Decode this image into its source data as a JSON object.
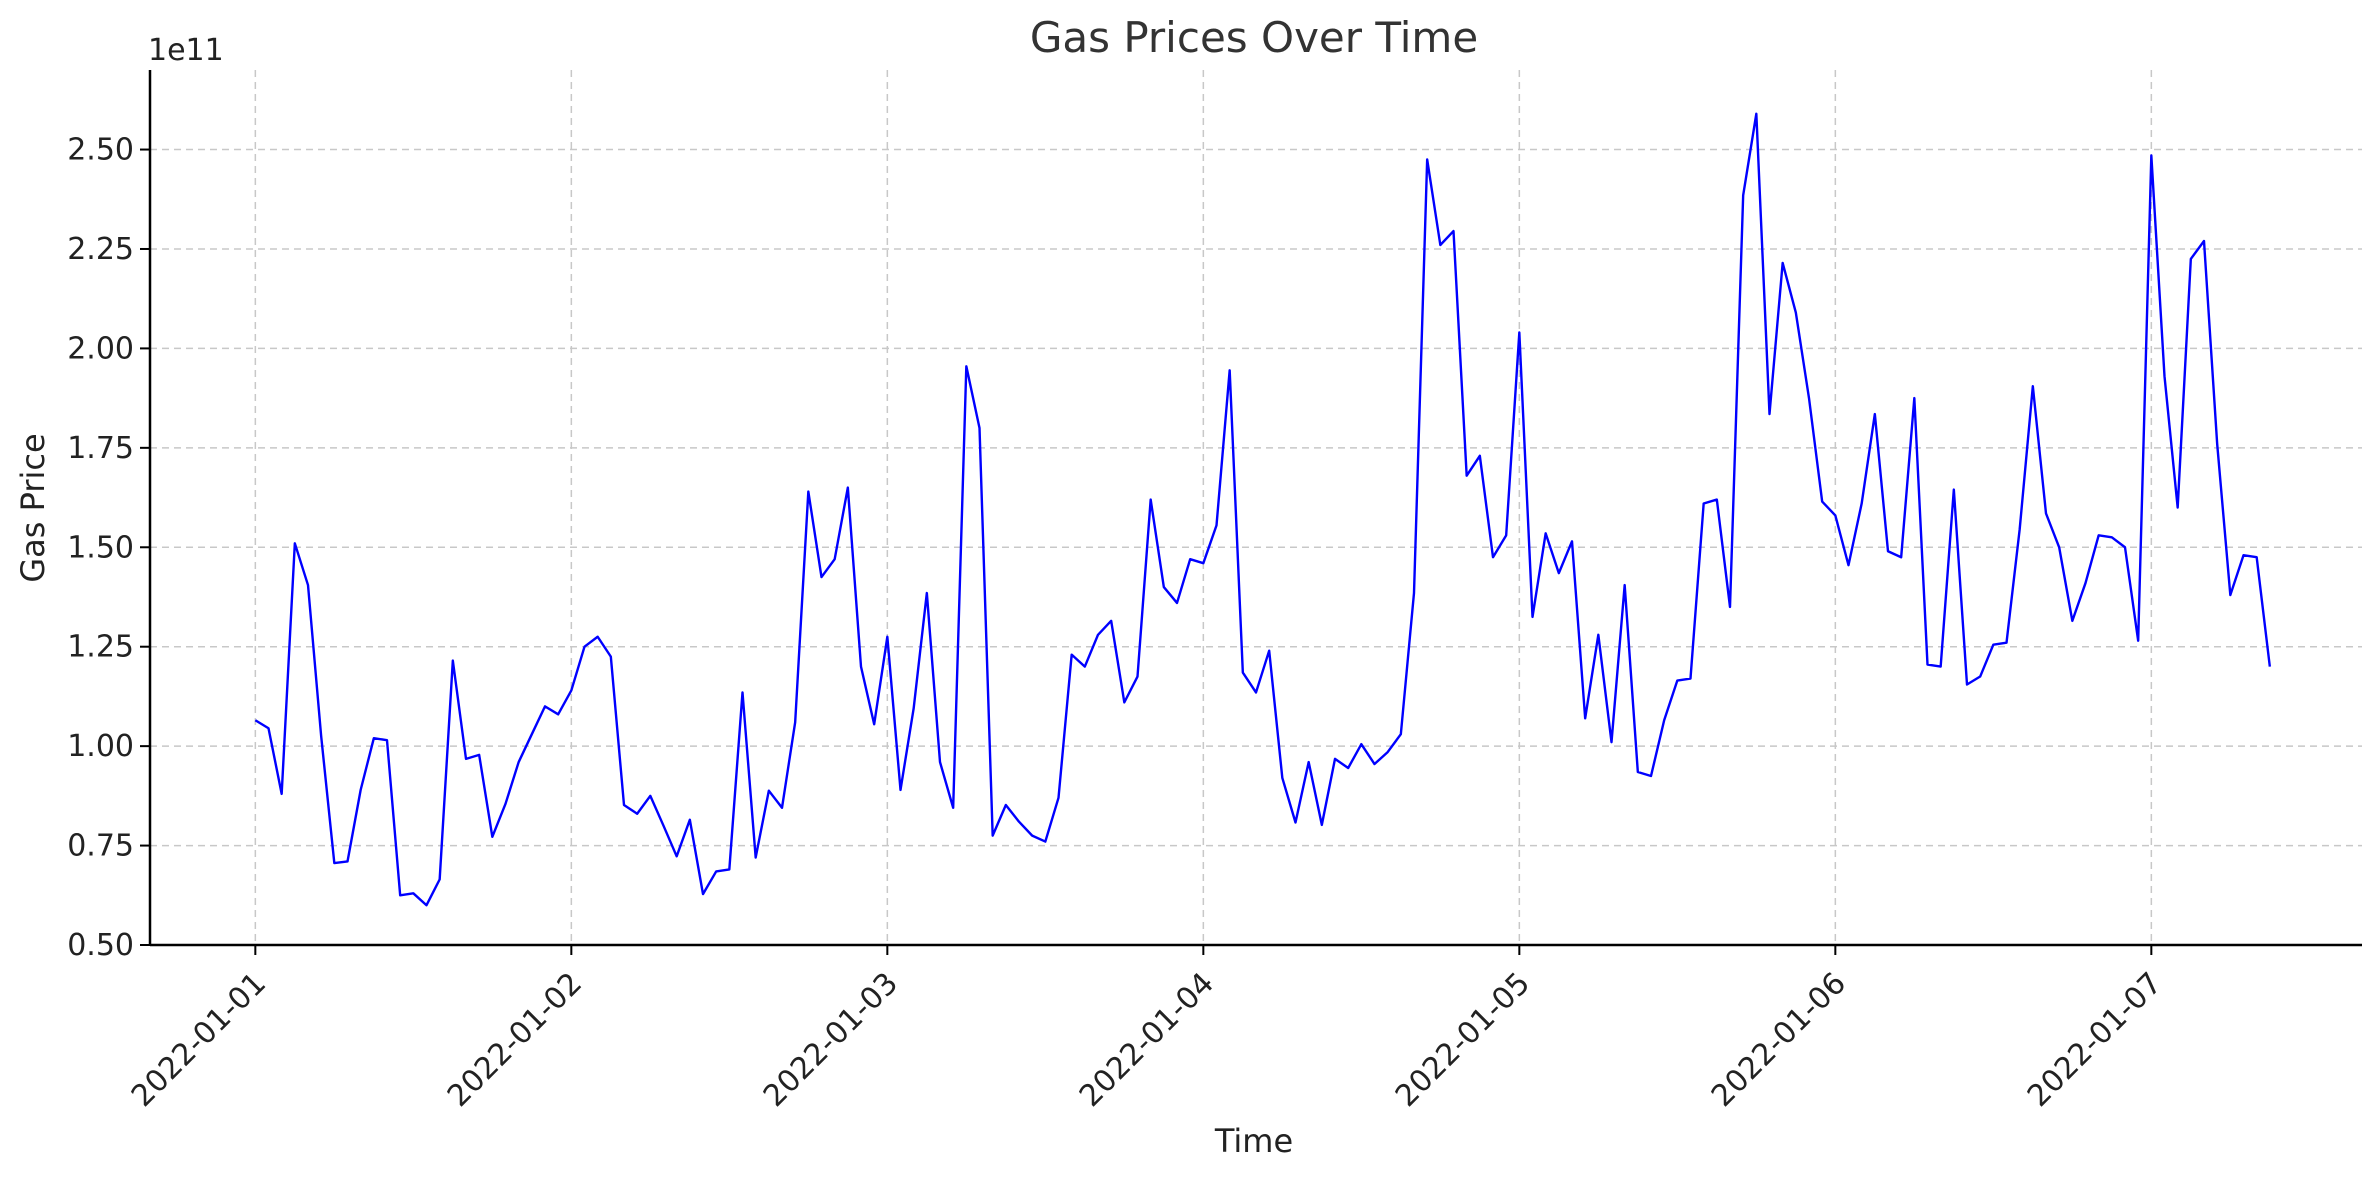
{
  "chart_data": {
    "type": "line",
    "title": "Gas Prices Over Time",
    "xlabel": "Time",
    "ylabel": "Gas Price",
    "y_offset_label": "1e11",
    "y_scale_factor": 100000000000.0,
    "grid": true,
    "line_color": "#0000ff",
    "ylim": [
      0.5,
      2.7
    ],
    "xlim": [
      "2021-12-31T16:00",
      "2022-01-07T16:00"
    ],
    "x_ticks": [
      "2022-01-01",
      "2022-01-02",
      "2022-01-03",
      "2022-01-04",
      "2022-01-05",
      "2022-01-06",
      "2022-01-07"
    ],
    "y_ticks": [
      "0.50",
      "0.75",
      "1.00",
      "1.25",
      "1.50",
      "1.75",
      "2.00",
      "2.25",
      "2.50"
    ],
    "series": [
      {
        "x_start": "2022-01-01T00:00",
        "x_step_hours": 1,
        "values": [
          1.065,
          1.045,
          0.88,
          1.51,
          1.405,
          1.025,
          0.706,
          0.71,
          0.89,
          1.02,
          1.015,
          0.625,
          0.63,
          0.6,
          0.665,
          1.215,
          0.968,
          0.978,
          0.772,
          0.855,
          0.96,
          1.03,
          1.1,
          1.08,
          1.14,
          1.25,
          1.275,
          1.225,
          0.852,
          0.83,
          0.875,
          0.8,
          0.723,
          0.815,
          0.628,
          0.685,
          0.69,
          1.135,
          0.72,
          0.888,
          0.845,
          1.06,
          1.64,
          1.425,
          1.47,
          1.65,
          1.2,
          1.055,
          1.275,
          0.89,
          1.095,
          1.385,
          0.96,
          0.845,
          1.955,
          1.8,
          0.775,
          0.852,
          0.81,
          0.775,
          0.76,
          0.87,
          1.23,
          1.2,
          1.28,
          1.315,
          1.11,
          1.175,
          1.62,
          1.4,
          1.36,
          1.47,
          1.46,
          1.555,
          1.945,
          1.185,
          1.135,
          1.24,
          0.92,
          0.808,
          0.96,
          0.802,
          0.968,
          0.945,
          1.005,
          0.955,
          0.985,
          1.03,
          1.385,
          2.475,
          2.26,
          2.295,
          1.68,
          1.73,
          1.475,
          1.53,
          2.04,
          1.325,
          1.535,
          1.435,
          1.515,
          1.07,
          1.28,
          1.01,
          1.405,
          0.935,
          0.925,
          1.065,
          1.165,
          1.17,
          1.61,
          1.62,
          1.35,
          2.385,
          2.59,
          1.835,
          2.215,
          2.09,
          1.875,
          1.615,
          1.58,
          1.455,
          1.61,
          1.835,
          1.49,
          1.475,
          1.875,
          1.205,
          1.2,
          1.645,
          1.155,
          1.175,
          1.255,
          1.26,
          1.545,
          1.905,
          1.585,
          1.5,
          1.315,
          1.41,
          1.53,
          1.525,
          1.5,
          1.265,
          2.485,
          1.93,
          1.6,
          2.225,
          2.27,
          1.76,
          1.38,
          1.48,
          1.475,
          1.2
        ]
      }
    ]
  }
}
